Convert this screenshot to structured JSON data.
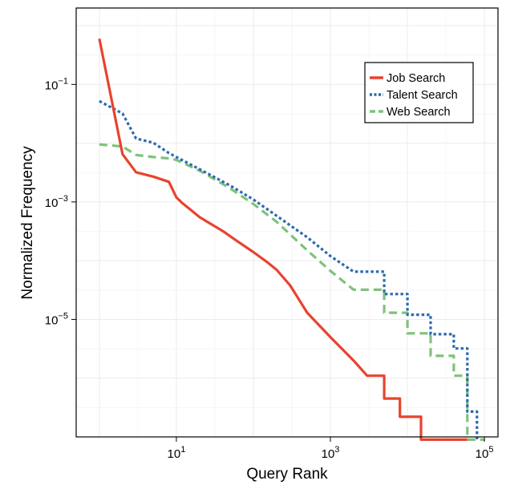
{
  "chart_data": {
    "type": "line",
    "title": "",
    "xlabel": "Query Rank",
    "ylabel": "Normalized Frequency",
    "x_scale": "log10",
    "y_scale": "log10",
    "xlim": [
      0.5,
      150000
    ],
    "ylim": [
      1e-07,
      2
    ],
    "x_ticks": [
      {
        "exp": 1,
        "value": 10
      },
      {
        "exp": 3,
        "value": 1000
      },
      {
        "exp": 5,
        "value": 100000
      }
    ],
    "y_ticks": [
      {
        "exp": -1,
        "value": 0.1
      },
      {
        "exp": -3,
        "value": 0.001
      },
      {
        "exp": -5,
        "value": 1e-05
      }
    ],
    "grid": true,
    "legend_position": "top-right",
    "series": [
      {
        "name": "Job Search",
        "color": "#e8432e",
        "dash": "solid",
        "x": [
          1,
          2,
          3,
          5,
          8,
          10,
          12,
          15,
          20,
          40,
          60,
          100,
          150,
          200,
          300,
          500,
          1000,
          2000,
          3000,
          5000,
          8000,
          15000,
          25000,
          40000,
          60000
        ],
        "y": [
          0.6,
          0.0065,
          0.0032,
          0.0027,
          0.0022,
          0.0012,
          0.00095,
          0.00075,
          0.00055,
          0.00032,
          0.00022,
          0.00014,
          9.5e-05,
          7e-05,
          3.8e-05,
          1.3e-05,
          5e-06,
          2e-06,
          1.1e-06,
          4.5e-07,
          2.2e-07,
          9e-08,
          9e-08,
          9e-08,
          9e-08
        ]
      },
      {
        "name": "Talent Search",
        "color": "#2d6aad",
        "dash": "dotted",
        "x": [
          1,
          2,
          3,
          5,
          8,
          10,
          20,
          50,
          100,
          200,
          500,
          1000,
          2000,
          5000,
          10000,
          20000,
          40000,
          60000,
          80000
        ],
        "y": [
          0.052,
          0.032,
          0.012,
          0.0102,
          0.0068,
          0.0058,
          0.0036,
          0.0019,
          0.0011,
          0.00058,
          0.00025,
          0.00012,
          6.5e-05,
          2.7e-05,
          1.2e-05,
          5.6e-06,
          3.2e-06,
          2.7e-07,
          9e-08
        ]
      },
      {
        "name": "Web Search",
        "color": "#7dc37a",
        "dash": "dashed",
        "x": [
          1,
          2,
          3,
          5,
          8,
          10,
          20,
          50,
          100,
          200,
          500,
          1000,
          2000,
          5000,
          10000,
          20000,
          40000,
          60000,
          80000,
          100000
        ],
        "y": [
          0.0095,
          0.0088,
          0.0063,
          0.0058,
          0.0055,
          0.0052,
          0.0034,
          0.0017,
          0.00092,
          0.00046,
          0.00015,
          6.7e-05,
          3.2e-05,
          1.3e-05,
          5.8e-06,
          2.4e-06,
          1.1e-06,
          9e-08,
          9e-08,
          9e-08
        ]
      }
    ]
  }
}
